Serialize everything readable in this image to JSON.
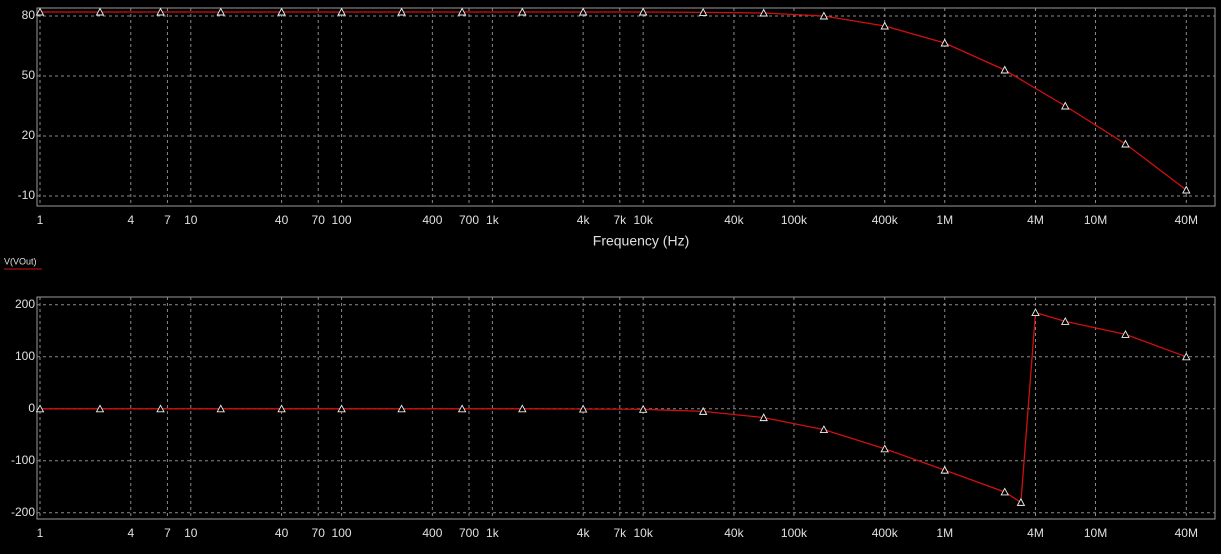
{
  "chart_data": [
    {
      "type": "line",
      "x_label": "Frequency (Hz)",
      "log_x": true,
      "grid": true,
      "xlim": [
        1,
        62000000
      ],
      "ylim": [
        -15,
        84
      ],
      "yticks": [
        80,
        50,
        20,
        -10
      ],
      "xticks": [
        1,
        4,
        7,
        10,
        40,
        70,
        100,
        400,
        700,
        {
          "value": 1000,
          "label": "1k"
        },
        {
          "value": 4000,
          "label": "4k"
        },
        {
          "value": 7000,
          "label": "7k"
        },
        {
          "value": 10000,
          "label": "10k"
        },
        {
          "value": 40000,
          "label": "40k"
        },
        {
          "value": 100000,
          "label": "100k"
        },
        {
          "value": 400000,
          "label": "400k"
        },
        {
          "value": 1000000,
          "label": "1M"
        },
        {
          "value": 4000000,
          "label": "4M"
        },
        {
          "value": 10000000,
          "label": "10M"
        },
        {
          "value": 40000000,
          "label": "40M"
        }
      ],
      "x": [
        1,
        2.5,
        6.3,
        15.8,
        40,
        100,
        250,
        630,
        1580,
        4000,
        10000,
        25000,
        63000,
        158000,
        400000,
        1000000,
        2500000,
        6300000,
        15800000,
        40000000
      ],
      "series": [
        {
          "color": "#d01010",
          "values": [
            82,
            82,
            82,
            82,
            82,
            82,
            82,
            82,
            82,
            82,
            82,
            81.8,
            81.5,
            80,
            75,
            66.5,
            53,
            35,
            16,
            -7
          ]
        }
      ]
    },
    {
      "type": "line",
      "log_x": true,
      "grid": true,
      "xlim": [
        1,
        62000000
      ],
      "ylim": [
        -212,
        215
      ],
      "yticks": [
        200,
        100,
        0,
        -100,
        -200
      ],
      "xticks": [
        1,
        4,
        7,
        10,
        40,
        70,
        100,
        400,
        700,
        {
          "value": 1000,
          "label": "1k"
        },
        {
          "value": 4000,
          "label": "4k"
        },
        {
          "value": 7000,
          "label": "7k"
        },
        {
          "value": 10000,
          "label": "10k"
        },
        {
          "value": 40000,
          "label": "40k"
        },
        {
          "value": 100000,
          "label": "100k"
        },
        {
          "value": 400000,
          "label": "400k"
        },
        {
          "value": 1000000,
          "label": "1M"
        },
        {
          "value": 4000000,
          "label": "4M"
        },
        {
          "value": 10000000,
          "label": "10M"
        },
        {
          "value": 40000000,
          "label": "40M"
        }
      ],
      "x": [
        1,
        2.5,
        6.3,
        15.8,
        40,
        100,
        250,
        630,
        1580,
        4000,
        10000,
        25000,
        63000,
        158000,
        400000,
        1000000,
        2500000,
        3200000,
        4000000,
        6300000,
        15800000,
        40000000
      ],
      "series": [
        {
          "name": "V(VOut)",
          "color": "#d01010",
          "values": [
            0,
            0,
            0,
            0,
            0,
            0,
            0,
            0,
            0,
            -0.5,
            -1,
            -5,
            -17,
            -40,
            -77,
            -118,
            -160,
            -180,
            185,
            168,
            143,
            100
          ]
        }
      ]
    }
  ]
}
